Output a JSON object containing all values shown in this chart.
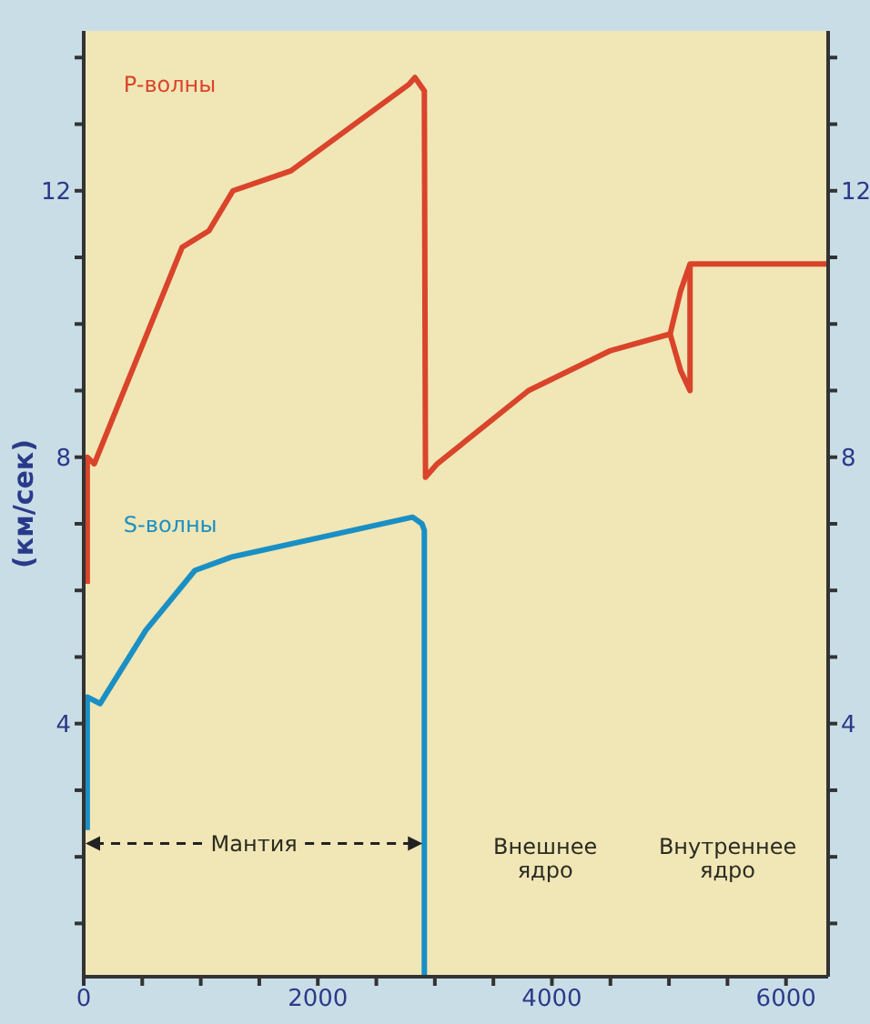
{
  "chart_data": {
    "type": "line",
    "ylabel": "(км/сек)",
    "xlim": [
      0,
      6360
    ],
    "xticks": [
      0,
      {
        "value": 500,
        "label": null
      },
      {
        "value": 1000,
        "label": null
      },
      {
        "value": 1500,
        "label": null
      },
      2000,
      {
        "value": 2500,
        "label": null
      },
      {
        "value": 3000,
        "label": null
      },
      {
        "value": 3500,
        "label": null
      },
      4000,
      {
        "value": 4500,
        "label": null
      },
      {
        "value": 5000,
        "label": null
      },
      {
        "value": 5500,
        "label": null
      },
      6000
    ],
    "ylim": [
      0.2,
      14.4
    ],
    "yticks": [
      {
        "value": 1,
        "label": null
      },
      {
        "value": 2,
        "label": null
      },
      {
        "value": 3,
        "label": null
      },
      4,
      {
        "value": 5,
        "label": null
      },
      {
        "value": 6,
        "label": null
      },
      {
        "value": 7,
        "label": null
      },
      8,
      {
        "value": 9,
        "label": null
      },
      {
        "value": 10,
        "label": null
      },
      {
        "value": 11,
        "label": null
      },
      12,
      {
        "value": 13,
        "label": null
      },
      {
        "value": 14,
        "label": null
      }
    ],
    "y2lim": [
      0.2,
      14.4
    ],
    "y2ticks": [
      {
        "value": 1,
        "label": null
      },
      {
        "value": 2,
        "label": null
      },
      {
        "value": 3,
        "label": null
      },
      4,
      {
        "value": 5,
        "label": null
      },
      {
        "value": 6,
        "label": null
      },
      {
        "value": 7,
        "label": null
      },
      8,
      {
        "value": 9,
        "label": null
      },
      {
        "value": 10,
        "label": null
      },
      {
        "value": 11,
        "label": null
      },
      12,
      {
        "value": 13,
        "label": null
      },
      {
        "value": 14,
        "label": null
      }
    ],
    "series": [
      {
        "name": "P-волны",
        "color": "#d9442b",
        "x": [
          30,
          30,
          90,
          840,
          1070,
          1275,
          1770,
          2780,
          2830,
          2910,
          2920,
          3020,
          3800,
          4500,
          5010,
          5100,
          5180,
          6360
        ],
        "values": [
          6.1,
          8.0,
          7.9,
          11.15,
          11.4,
          12.0,
          12.3,
          13.6,
          13.7,
          13.5,
          7.7,
          7.9,
          9.0,
          9.6,
          9.85,
          10.5,
          10.9,
          10.9
        ]
      },
      {
        "color": "#d9442b",
        "x": [
          5010,
          5100,
          5180,
          5180
        ],
        "values": [
          9.85,
          9.3,
          9.0,
          10.9
        ]
      },
      {
        "name": "S-волны",
        "color": "#1a8fc4",
        "x": [
          30,
          30,
          140,
          530,
          950,
          1260,
          2810,
          2890,
          2910,
          2910
        ],
        "values": [
          2.4,
          4.4,
          4.3,
          5.4,
          6.3,
          6.5,
          7.1,
          7.0,
          6.9,
          0.2
        ]
      }
    ],
    "annotations": [
      {
        "text": "Мантия",
        "x": 2910,
        "y": 2.2
      },
      "Внешнее\nядро",
      "Внутреннее\nядро"
    ],
    "marker": "none",
    "line_style": "solid"
  }
}
